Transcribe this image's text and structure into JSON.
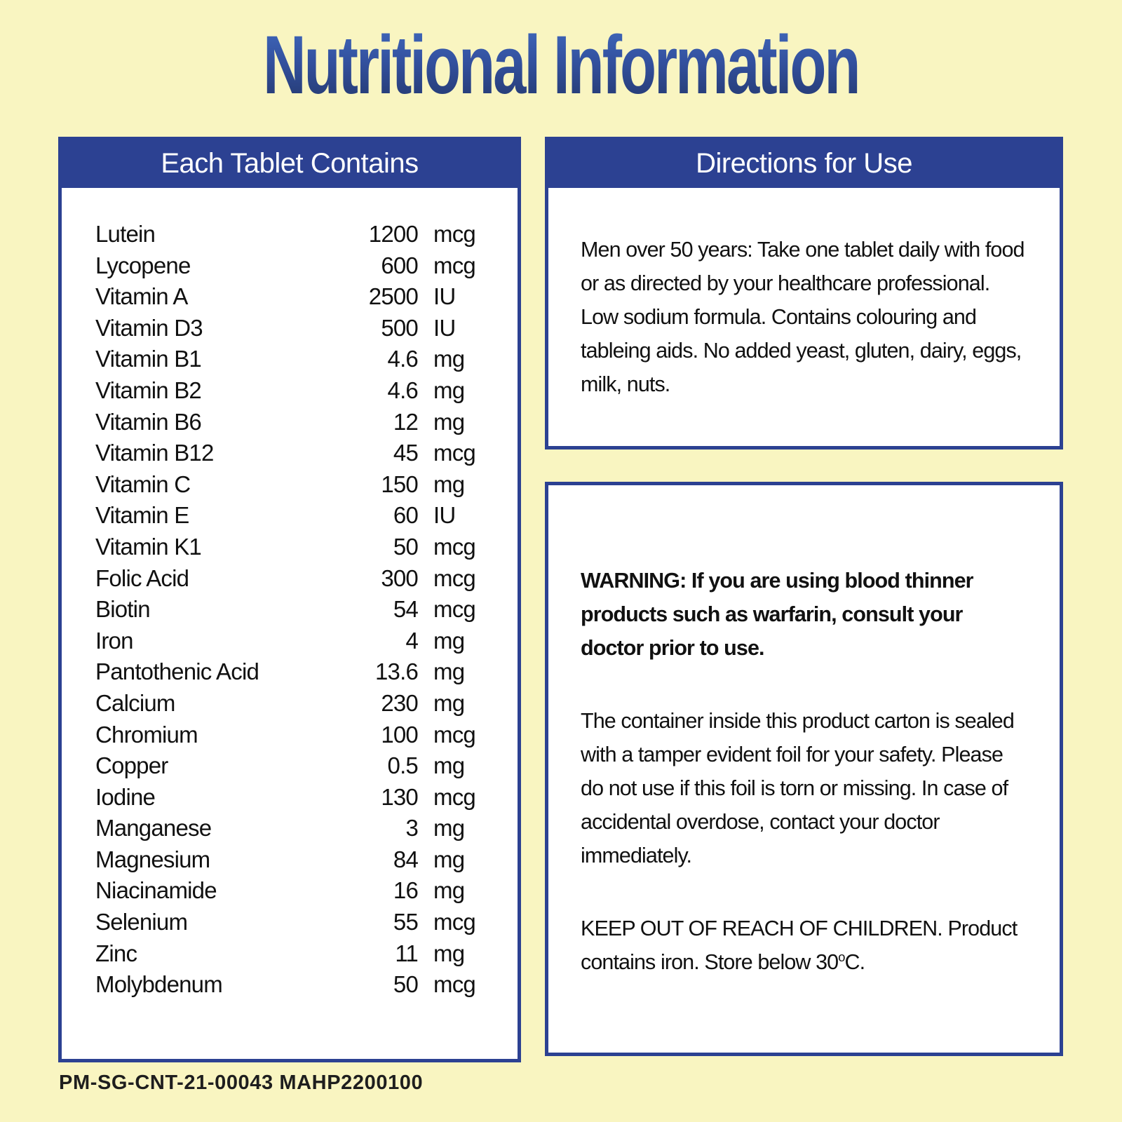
{
  "page": {
    "title": "Nutritional Information",
    "footer_code": "PM-SG-CNT-21-00043 MAHP2200100"
  },
  "colors": {
    "background": "#F9F5C1",
    "panel_blue": "#2C4192",
    "title_gradient_top": "#4068BC",
    "title_gradient_bottom": "#24386E",
    "body_text": "#111111"
  },
  "tablet_panel": {
    "header": "Each Tablet Contains",
    "rows": [
      {
        "name": "Lutein",
        "value": "1200",
        "unit": "mcg"
      },
      {
        "name": "Lycopene",
        "value": "600",
        "unit": "mcg"
      },
      {
        "name": "Vitamin A",
        "value": "2500",
        "unit": "IU"
      },
      {
        "name": "Vitamin D3",
        "value": "500",
        "unit": "IU"
      },
      {
        "name": "Vitamin B1",
        "value": "4.6",
        "unit": "mg"
      },
      {
        "name": "Vitamin B2",
        "value": "4.6",
        "unit": "mg"
      },
      {
        "name": "Vitamin B6",
        "value": "12",
        "unit": "mg"
      },
      {
        "name": "Vitamin B12",
        "value": "45",
        "unit": "mcg"
      },
      {
        "name": "Vitamin C",
        "value": "150",
        "unit": "mg"
      },
      {
        "name": "Vitamin E",
        "value": "60",
        "unit": "IU"
      },
      {
        "name": "Vitamin K1",
        "value": "50",
        "unit": "mcg"
      },
      {
        "name": "Folic Acid",
        "value": "300",
        "unit": "mcg"
      },
      {
        "name": "Biotin",
        "value": "54",
        "unit": "mcg"
      },
      {
        "name": "Iron",
        "value": "4",
        "unit": "mg"
      },
      {
        "name": "Pantothenic Acid",
        "value": "13.6",
        "unit": "mg"
      },
      {
        "name": "Calcium",
        "value": "230",
        "unit": "mg"
      },
      {
        "name": "Chromium",
        "value": "100",
        "unit": "mcg"
      },
      {
        "name": "Copper",
        "value": "0.5",
        "unit": "mg"
      },
      {
        "name": "Iodine",
        "value": "130",
        "unit": "mcg"
      },
      {
        "name": "Manganese",
        "value": "3",
        "unit": "mg"
      },
      {
        "name": "Magnesium",
        "value": "84",
        "unit": "mg"
      },
      {
        "name": "Niacinamide",
        "value": "16",
        "unit": "mg"
      },
      {
        "name": "Selenium",
        "value": "55",
        "unit": "mcg"
      },
      {
        "name": "Zinc",
        "value": "11",
        "unit": "mg"
      },
      {
        "name": "Molybdenum",
        "value": "50",
        "unit": "mcg"
      }
    ]
  },
  "directions_panel": {
    "header": "Directions for Use",
    "body": "Men over 50 years: Take one tablet daily with food or as directed by your healthcare professional. Low sodium formula. Contains colouring and tableing aids. No added yeast, gluten, dairy, eggs, milk, nuts."
  },
  "warning_panel": {
    "warning": "WARNING: If you are using blood thinner products such as warfarin, consult your doctor prior to use.",
    "tamper": "The container inside this product carton is sealed with a tamper evident foil for your safety. Please do not use if this foil is torn or missing. In case of accidental overdose, contact your doctor immediately.",
    "keep_out_prefix": "KEEP OUT OF REACH OF CHILDREN. Product contains iron. Store below 30",
    "keep_out_sup": "o",
    "keep_out_suffix": "C."
  }
}
